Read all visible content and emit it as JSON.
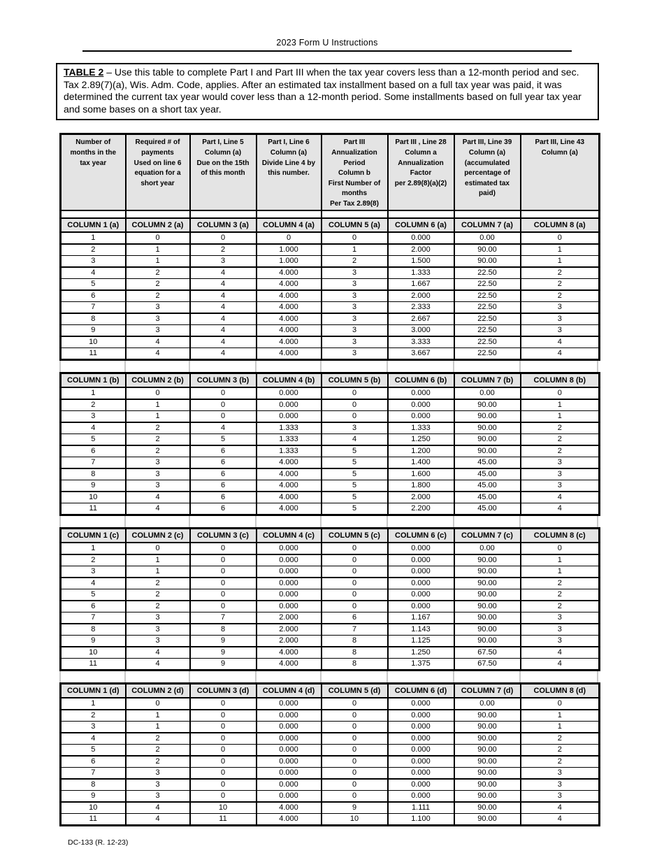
{
  "page": {
    "title": "2023 Form U Instructions",
    "footer": "DC-133 (R. 12-23)",
    "colors": {
      "page_bg": "#ffffff",
      "text": "#000000",
      "table_border": "#000000",
      "header_row_bg": "#e4e4e4",
      "gap_artifact_lines": "#c9c9c9"
    }
  },
  "intro_box": {
    "title": "TABLE 2",
    "body": " – Use this table to complete Part I and Part III when the tax year covers less than a 12-month period and sec. Tax 2.89(7)(a), Wis. Adm. Code, applies. After an estimated tax installment based on a full tax year was paid, it was determined the current tax year would cover less than a 12-month period. Some installments based on full year tax year and some bases on a short tax year."
  },
  "main_header_columns": [
    "Number of\nmonths in the\ntax year",
    "Required # of\npayments\nUsed on line 6\nequation for a\nshort year",
    "Part I, Line 5\nColumn (a)\nDue on the 15th\nof this month",
    "Part I, Line 6\nColumn (a)\nDivide Line 4 by\nthis number.",
    "Part III\nAnnualization\nPeriod\nColumn b\nFirst Number of\nmonths\nPer Tax 2.89(8)",
    "Part III , Line 28\nColumn a\nAnnualization\nFactor\nper 2.89(8)(a)(2)",
    "Part III, Line 39\nColumn (a)\n(accumulated\npercentage of\nestimated tax\npaid)",
    "Part III, Line 43\nColumn (a)"
  ],
  "tables": [
    {
      "suffix": "a",
      "headers": [
        "COLUMN 1 (a)",
        "COLUMN 2 (a)",
        "COLUMN 3 (a)",
        "COLUMN 4 (a)",
        "COLUMN 5 (a)",
        "COLUMN 6 (a)",
        "COLUMN 7 (a)",
        "COLUMN 8 (a)"
      ],
      "rows": [
        [
          "1",
          "0",
          "0",
          "0",
          "0",
          "0.000",
          "0.00",
          "0"
        ],
        [
          "2",
          "1",
          "2",
          "1.000",
          "1",
          "2.000",
          "90.00",
          "1"
        ],
        [
          "3",
          "1",
          "3",
          "1.000",
          "2",
          "1.500",
          "90.00",
          "1"
        ],
        [
          "4",
          "2",
          "4",
          "4.000",
          "3",
          "1.333",
          "22.50",
          "2"
        ],
        [
          "5",
          "2",
          "4",
          "4.000",
          "3",
          "1.667",
          "22.50",
          "2"
        ],
        [
          "6",
          "2",
          "4",
          "4.000",
          "3",
          "2.000",
          "22.50",
          "2"
        ],
        [
          "7",
          "3",
          "4",
          "4.000",
          "3",
          "2.333",
          "22.50",
          "3"
        ],
        [
          "8",
          "3",
          "4",
          "4.000",
          "3",
          "2.667",
          "22.50",
          "3"
        ],
        [
          "9",
          "3",
          "4",
          "4.000",
          "3",
          "3.000",
          "22.50",
          "3"
        ],
        [
          "10",
          "4",
          "4",
          "4.000",
          "3",
          "3.333",
          "22.50",
          "4"
        ],
        [
          "11",
          "4",
          "4",
          "4.000",
          "3",
          "3.667",
          "22.50",
          "4"
        ]
      ]
    },
    {
      "suffix": "b",
      "headers": [
        "COLUMN 1 (b)",
        "COLUMN 2 (b)",
        "COLUMN 3 (b)",
        "COLUMN 4 (b)",
        "COLUMN 5 (b)",
        "COLUMN 6 (b)",
        "COLUMN 7 (b)",
        "COLUMN 8 (b)"
      ],
      "rows": [
        [
          "1",
          "0",
          "0",
          "0.000",
          "0",
          "0.000",
          "0.00",
          "0"
        ],
        [
          "2",
          "1",
          "0",
          "0.000",
          "0",
          "0.000",
          "90.00",
          "1"
        ],
        [
          "3",
          "1",
          "0",
          "0.000",
          "0",
          "0.000",
          "90.00",
          "1"
        ],
        [
          "4",
          "2",
          "4",
          "1.333",
          "3",
          "1.333",
          "90.00",
          "2"
        ],
        [
          "5",
          "2",
          "5",
          "1.333",
          "4",
          "1.250",
          "90.00",
          "2"
        ],
        [
          "6",
          "2",
          "6",
          "1.333",
          "5",
          "1.200",
          "90.00",
          "2"
        ],
        [
          "7",
          "3",
          "6",
          "4.000",
          "5",
          "1.400",
          "45.00",
          "3"
        ],
        [
          "8",
          "3",
          "6",
          "4.000",
          "5",
          "1.600",
          "45.00",
          "3"
        ],
        [
          "9",
          "3",
          "6",
          "4.000",
          "5",
          "1.800",
          "45.00",
          "3"
        ],
        [
          "10",
          "4",
          "6",
          "4.000",
          "5",
          "2.000",
          "45.00",
          "4"
        ],
        [
          "11",
          "4",
          "6",
          "4.000",
          "5",
          "2.200",
          "45.00",
          "4"
        ]
      ]
    },
    {
      "suffix": "c",
      "headers": [
        "COLUMN 1 (c)",
        "COLUMN 2 (c)",
        "COLUMN 3 (c)",
        "COLUMN 4 (c)",
        "COLUMN 5 (c)",
        "COLUMN 6 (c)",
        "COLUMN 7 (c)",
        "COLUMN 8 (c)"
      ],
      "rows": [
        [
          "1",
          "0",
          "0",
          "0.000",
          "0",
          "0.000",
          "0.00",
          "0"
        ],
        [
          "2",
          "1",
          "0",
          "0.000",
          "0",
          "0.000",
          "90.00",
          "1"
        ],
        [
          "3",
          "1",
          "0",
          "0.000",
          "0",
          "0.000",
          "90.00",
          "1"
        ],
        [
          "4",
          "2",
          "0",
          "0.000",
          "0",
          "0.000",
          "90.00",
          "2"
        ],
        [
          "5",
          "2",
          "0",
          "0.000",
          "0",
          "0.000",
          "90.00",
          "2"
        ],
        [
          "6",
          "2",
          "0",
          "0.000",
          "0",
          "0.000",
          "90.00",
          "2"
        ],
        [
          "7",
          "3",
          "7",
          "2.000",
          "6",
          "1.167",
          "90.00",
          "3"
        ],
        [
          "8",
          "3",
          "8",
          "2.000",
          "7",
          "1.143",
          "90.00",
          "3"
        ],
        [
          "9",
          "3",
          "9",
          "2.000",
          "8",
          "1.125",
          "90.00",
          "3"
        ],
        [
          "10",
          "4",
          "9",
          "4.000",
          "8",
          "1.250",
          "67.50",
          "4"
        ],
        [
          "11",
          "4",
          "9",
          "4.000",
          "8",
          "1.375",
          "67.50",
          "4"
        ]
      ]
    },
    {
      "suffix": "d",
      "headers": [
        "COLUMN 1 (d)",
        "COLUMN 2 (d)",
        "COLUMN 3 (d)",
        "COLUMN 4 (d)",
        "COLUMN 5 (d)",
        "COLUMN 6 (d)",
        "COLUMN 7 (d)",
        "COLUMN 8 (d)"
      ],
      "rows": [
        [
          "1",
          "0",
          "0",
          "0.000",
          "0",
          "0.000",
          "0.00",
          "0"
        ],
        [
          "2",
          "1",
          "0",
          "0.000",
          "0",
          "0.000",
          "90.00",
          "1"
        ],
        [
          "3",
          "1",
          "0",
          "0.000",
          "0",
          "0.000",
          "90.00",
          "1"
        ],
        [
          "4",
          "2",
          "0",
          "0.000",
          "0",
          "0.000",
          "90.00",
          "2"
        ],
        [
          "5",
          "2",
          "0",
          "0.000",
          "0",
          "0.000",
          "90.00",
          "2"
        ],
        [
          "6",
          "2",
          "0",
          "0.000",
          "0",
          "0.000",
          "90.00",
          "2"
        ],
        [
          "7",
          "3",
          "0",
          "0.000",
          "0",
          "0.000",
          "90.00",
          "3"
        ],
        [
          "8",
          "3",
          "0",
          "0.000",
          "0",
          "0.000",
          "90.00",
          "3"
        ],
        [
          "9",
          "3",
          "0",
          "0.000",
          "0",
          "0.000",
          "90.00",
          "3"
        ],
        [
          "10",
          "4",
          "10",
          "4.000",
          "9",
          "1.111",
          "90.00",
          "4"
        ],
        [
          "11",
          "4",
          "11",
          "4.000",
          "10",
          "1.100",
          "90.00",
          "4"
        ]
      ]
    }
  ]
}
